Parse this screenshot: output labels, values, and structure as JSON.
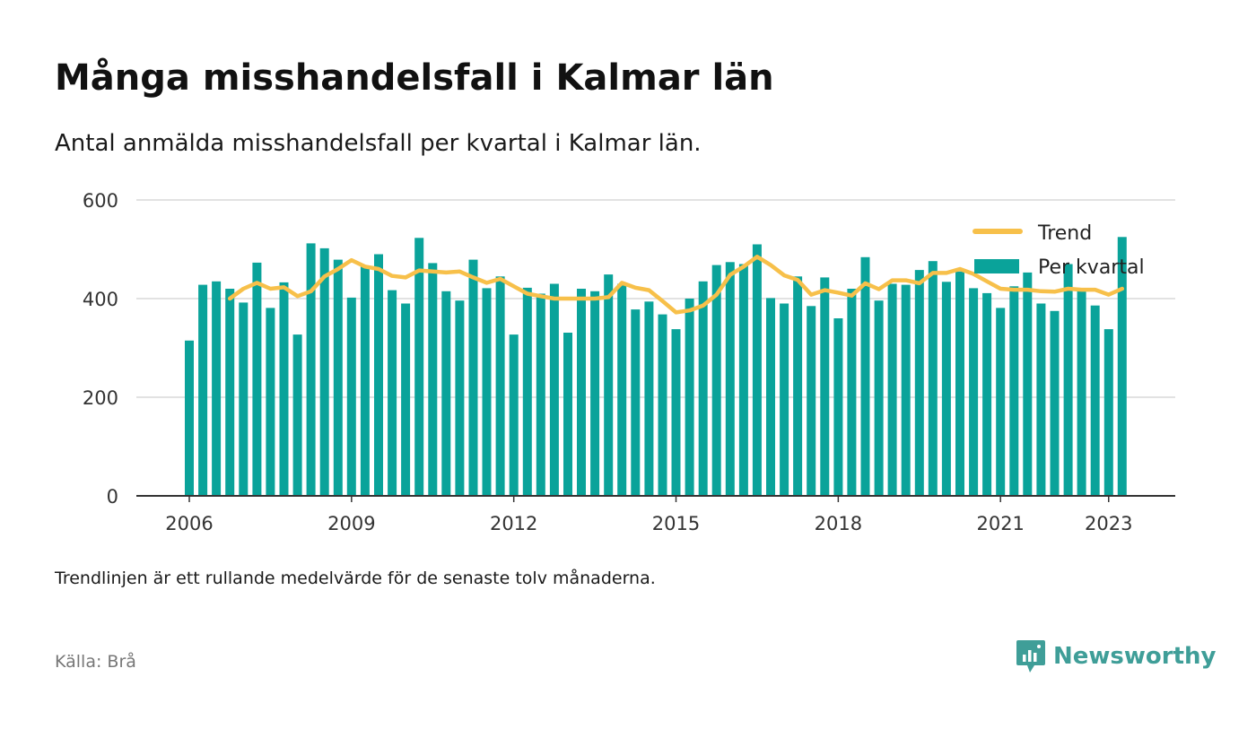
{
  "title": "Många misshandelsfall i Kalmar län",
  "subtitle": "Antal anmälda misshandelsfall per kvartal i Kalmar län.",
  "note": "Trendlinjen är ett rullande medelvärde för de senaste tolv månaderna.",
  "source": "Källa: Brå",
  "brand": {
    "name": "Newsworthy",
    "icon": "newsworthy-logo-icon"
  },
  "colors": {
    "bars": "#0aa39a",
    "bars_faded": "#cdeeed",
    "trend": "#f7c04a",
    "grid": "#d9d9d9",
    "axis": "#333333",
    "brand": "#3f9e98"
  },
  "chart_data": {
    "type": "bar",
    "x_start": "2006 Q1",
    "x_ticks": [
      "2006",
      "2009",
      "2012",
      "2015",
      "2018",
      "2021",
      "2023"
    ],
    "y_ticks": [
      0,
      200,
      400,
      600
    ],
    "ylim": [
      0,
      600
    ],
    "grid": true,
    "legend": {
      "placement": "top-right",
      "entries": [
        "Trend",
        "Per kvartal"
      ]
    },
    "series": [
      {
        "name": "Per kvartal",
        "type": "bar",
        "values": [
          315,
          428,
          435,
          420,
          392,
          473,
          381,
          433,
          327,
          512,
          502,
          479,
          402,
          465,
          490,
          417,
          390,
          523,
          472,
          415,
          396,
          479,
          421,
          445,
          327,
          422,
          410,
          430,
          331,
          420,
          415,
          449,
          430,
          378,
          394,
          368,
          338,
          400,
          435,
          468,
          474,
          470,
          510,
          401,
          390,
          445,
          385,
          443,
          360,
          420,
          484,
          396,
          430,
          428,
          458,
          476,
          434,
          455,
          421,
          411,
          381,
          425,
          453,
          390,
          375,
          470,
          420,
          386,
          338,
          525
        ]
      },
      {
        "name": "Trend",
        "type": "line",
        "values": [
          null,
          null,
          null,
          400,
          420,
          432,
          420,
          423,
          405,
          415,
          445,
          460,
          478,
          465,
          460,
          446,
          443,
          457,
          455,
          453,
          455,
          443,
          432,
          440,
          425,
          410,
          405,
          400,
          400,
          400,
          400,
          403,
          432,
          422,
          417,
          395,
          372,
          376,
          386,
          408,
          448,
          465,
          485,
          468,
          447,
          438,
          408,
          417,
          412,
          406,
          431,
          419,
          437,
          437,
          431,
          452,
          452,
          460,
          450,
          435,
          420,
          418,
          418,
          415,
          414,
          420,
          418,
          418,
          408,
          420
        ]
      }
    ]
  }
}
